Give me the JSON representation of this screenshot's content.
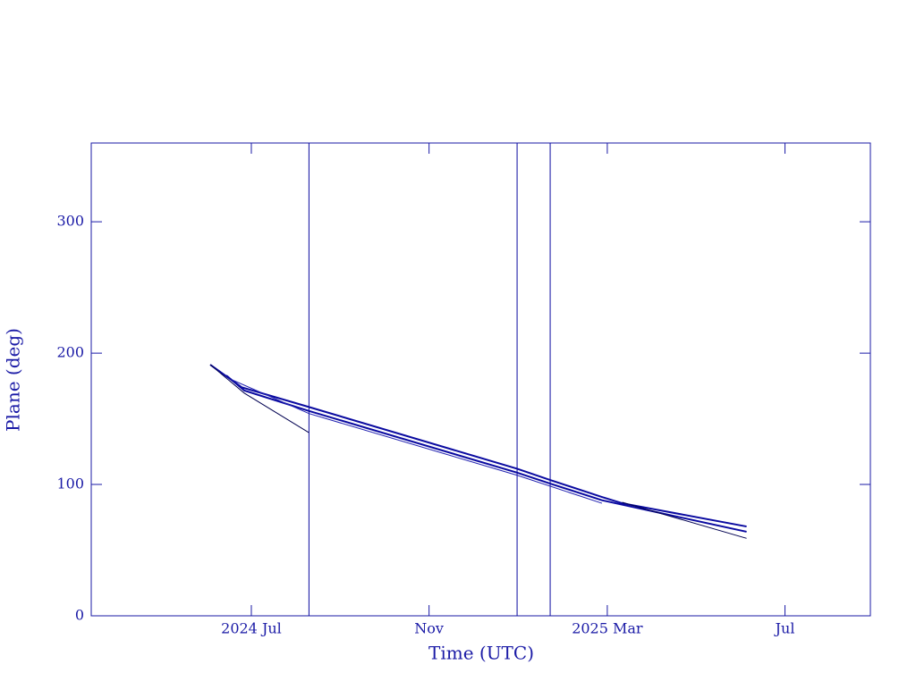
{
  "chart_data": {
    "type": "line",
    "xlabel": "Time (UTC)",
    "ylabel": "Plane (deg)",
    "xlim": [
      2024.2,
      2025.66
    ],
    "ylim": [
      0,
      360
    ],
    "xticks": [
      {
        "value": 2024.5,
        "label": "2024 Jul"
      },
      {
        "value": 2024.833,
        "label": "Nov"
      },
      {
        "value": 2025.167,
        "label": "2025 Mar"
      },
      {
        "value": 2025.5,
        "label": "Jul"
      }
    ],
    "yticks": [
      0,
      100,
      200,
      300
    ],
    "color": "#0a0aa0",
    "vlines": [
      2024.608,
      2024.998,
      2025.06
    ],
    "series": [
      {
        "color": "#0a0aa0",
        "width": 2,
        "x": [
          2024.423,
          2024.482,
          2024.608,
          2024.998,
          2025.06,
          2025.157,
          2025.195,
          2025.428
        ],
        "values": [
          191.2,
          174,
          159,
          112,
          103.4,
          90.5,
          85.7,
          68
        ]
      },
      {
        "color": "#0a0aa0",
        "width": 2,
        "x": [
          2024.453,
          2024.487,
          2024.608,
          2024.998,
          2025.06,
          2025.157,
          2025.428
        ],
        "values": [
          183,
          171.5,
          156,
          109,
          100.7,
          88,
          64
        ]
      },
      {
        "color": "#000050",
        "width": 1,
        "x": [
          2024.423,
          2024.487,
          2024.608
        ],
        "values": [
          191.2,
          169.5,
          139.5
        ]
      },
      {
        "color": "#000050",
        "width": 1,
        "x": [
          2025.195,
          2025.428
        ],
        "values": [
          86.4,
          59
        ]
      },
      {
        "color": "#2020b0",
        "width": 1,
        "x": [
          2024.462,
          2024.608,
          2024.998,
          2025.157
        ],
        "values": [
          180,
          154,
          107,
          85.7
        ]
      }
    ]
  }
}
